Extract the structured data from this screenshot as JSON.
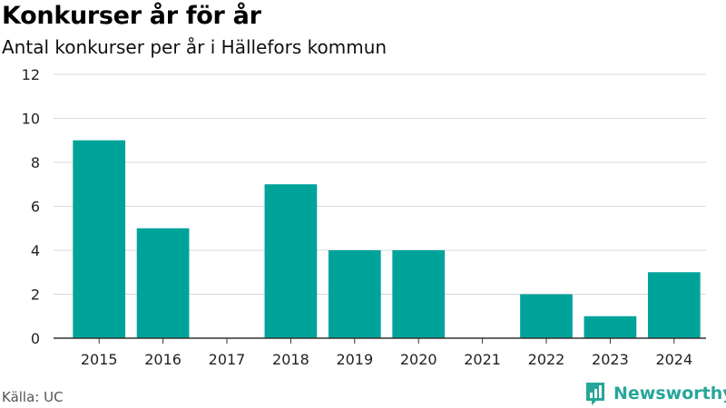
{
  "header": {
    "title": "Konkurser år för år",
    "subtitle": "Antal konkurser per år i Hällefors kommun"
  },
  "footer": {
    "source": "Källa: UC",
    "brand": "Newsworthy",
    "brand_icon": "bar-chart-logo-icon"
  },
  "colors": {
    "bar": "#00a39a",
    "grid": "#d9d9d9",
    "axis": "#333333",
    "brand": "#26a69a"
  },
  "chart_data": {
    "type": "bar",
    "categories": [
      "2015",
      "2016",
      "2017",
      "2018",
      "2019",
      "2020",
      "2021",
      "2022",
      "2023",
      "2024"
    ],
    "values": [
      9,
      5,
      0,
      7,
      4,
      4,
      0,
      2,
      1,
      3
    ],
    "ylim": [
      0,
      12
    ],
    "yticks": [
      0,
      2,
      4,
      6,
      8,
      10,
      12
    ],
    "grid": true,
    "legend": "none",
    "xlabel": "",
    "ylabel": ""
  }
}
